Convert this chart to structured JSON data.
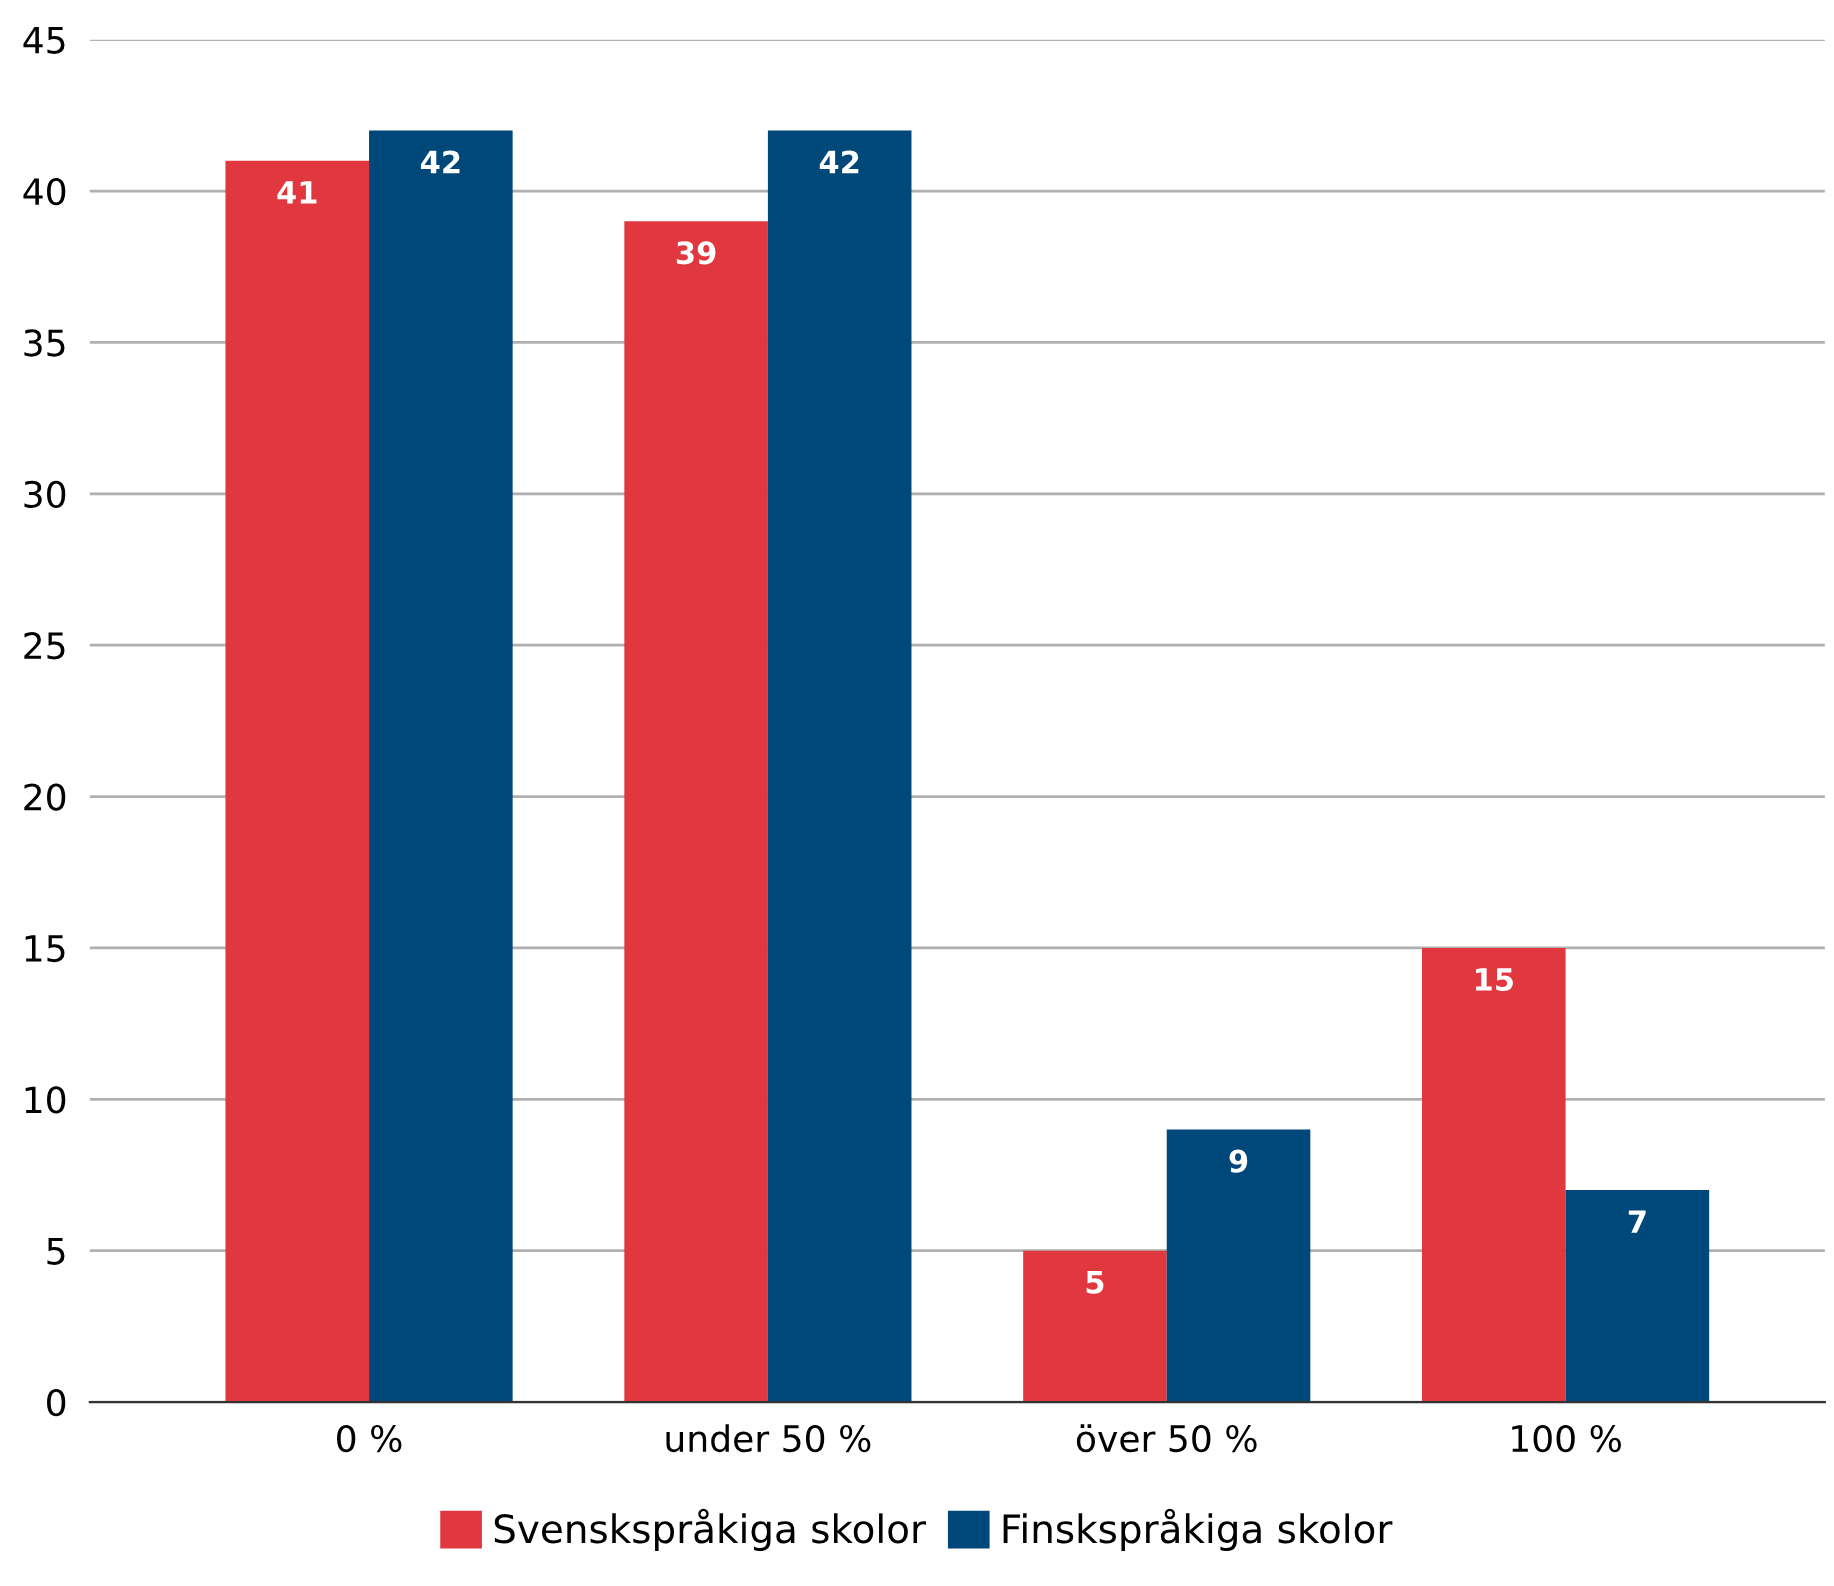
{
  "chart_data": {
    "type": "bar",
    "categories": [
      "0 %",
      "under 50 %",
      "över 50 %",
      "100 %"
    ],
    "series": [
      {
        "name": "Svenskspråkiga skolor",
        "color": "#e0383e",
        "values": [
          41,
          39,
          5,
          15
        ]
      },
      {
        "name": "Finskspråkiga skolor",
        "color": "#00477a",
        "values": [
          42,
          42,
          9,
          7
        ]
      }
    ],
    "ylim": [
      0,
      45
    ],
    "yticks": [
      0,
      5,
      10,
      15,
      20,
      25,
      30,
      35,
      40,
      45
    ],
    "grid": "y",
    "legend": "bottom",
    "data_labels": true
  }
}
